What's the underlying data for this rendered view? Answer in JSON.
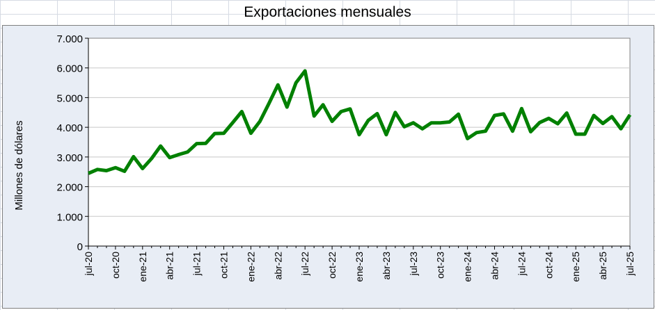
{
  "chart_data": {
    "type": "line",
    "title": "Exportaciones mensuales",
    "xlabel": "",
    "ylabel": "Millones de dólares",
    "ylim": [
      0,
      7000
    ],
    "yticks": [
      "0",
      "1.000",
      "2.000",
      "3.000",
      "4.000",
      "5.000",
      "6.000",
      "7.000"
    ],
    "ytick_values": [
      0,
      1000,
      2000,
      3000,
      4000,
      5000,
      6000,
      7000
    ],
    "xtick_labels": [
      "jul-20",
      "oct-20",
      "ene-21",
      "abr-21",
      "jul-21",
      "oct-21",
      "ene-22",
      "abr-22",
      "jul-22",
      "oct-22",
      "ene-23",
      "abr-23",
      "jul-23",
      "oct-23",
      "ene-24",
      "abr-24",
      "jul-24",
      "oct-24",
      "ene-25",
      "abr-25",
      "jul-25"
    ],
    "grid": true,
    "series": [
      {
        "name": "Exportaciones",
        "color": "#008000",
        "values": [
          2450,
          2580,
          2540,
          2640,
          2520,
          3010,
          2610,
          2950,
          3370,
          2980,
          3080,
          3170,
          3450,
          3460,
          3790,
          3800,
          4160,
          4530,
          3800,
          4200,
          4800,
          5430,
          4680,
          5500,
          5900,
          4380,
          4760,
          4200,
          4530,
          4620,
          3750,
          4230,
          4460,
          3750,
          4500,
          4020,
          4150,
          3950,
          4150,
          4150,
          4180,
          4440,
          3620,
          3820,
          3870,
          4400,
          4450,
          3870,
          4630,
          3850,
          4160,
          4300,
          4120,
          4480,
          3770,
          3770,
          4400,
          4130,
          4360,
          3950,
          4420
        ]
      }
    ]
  }
}
